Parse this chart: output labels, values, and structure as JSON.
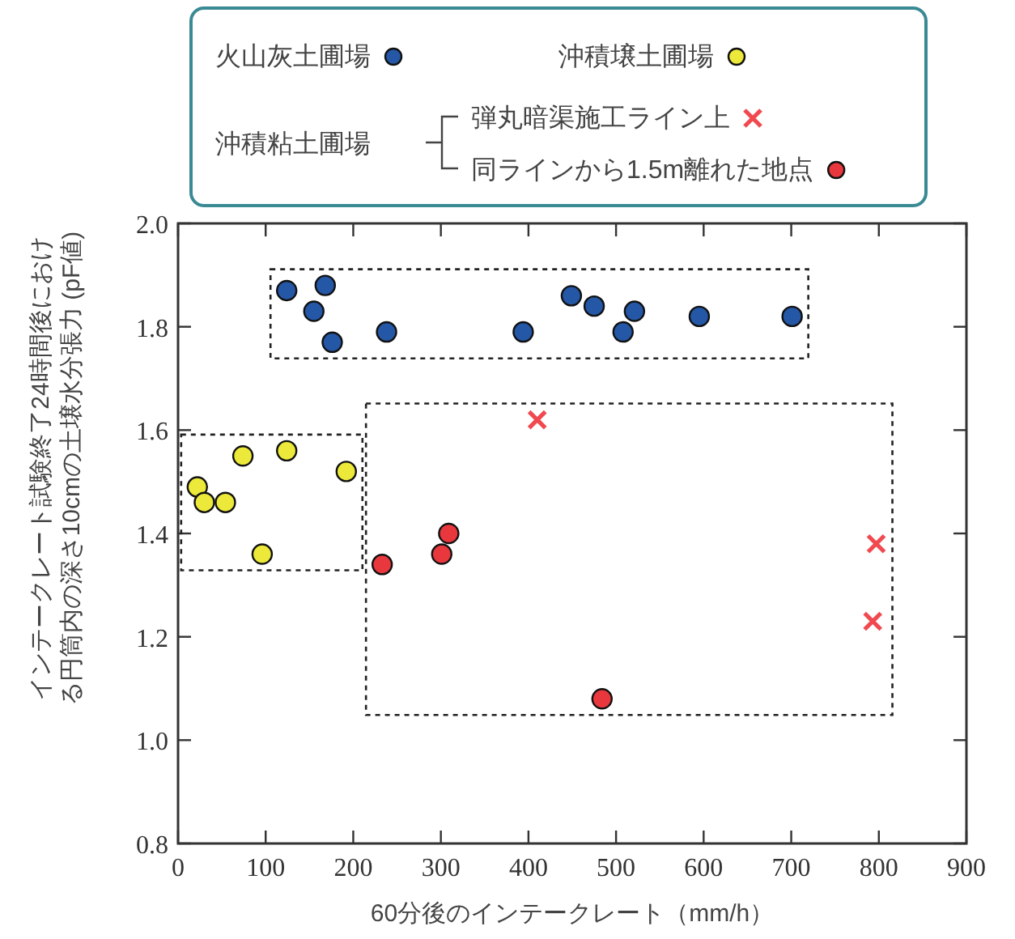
{
  "chart_data": {
    "type": "scatter",
    "xlabel": "60分後のインテークレート（mm/h）",
    "ylabel": "インテークレート試験終了24時間後における円筒内の深さ10cmの土壌水分張力 (pF値)",
    "xlim": [
      0,
      900
    ],
    "xticks": [
      0,
      100,
      200,
      300,
      400,
      500,
      600,
      700,
      800,
      900
    ],
    "ylim": [
      0.8,
      2.0
    ],
    "yticks": [
      {
        "value": 0.8,
        "label": "0.8"
      },
      {
        "value": 1.0,
        "label": "1.0"
      },
      {
        "value": 1.2,
        "label": "1.2"
      },
      {
        "value": 1.4,
        "label": "1.4"
      },
      {
        "value": 1.6,
        "label": "1.6"
      },
      {
        "value": 1.8,
        "label": "1.8"
      },
      {
        "value": 2.0,
        "label": "2.0"
      }
    ],
    "legend": "top",
    "grid": false,
    "annotations": [
      "沖積粘土圃場"
    ],
    "series": [
      {
        "name": "火山灰土圃場",
        "color": "#2457a6",
        "marker": "circle",
        "x": [
          124,
          168,
          155,
          176,
          238,
          394,
          449,
          475,
          521,
          508,
          595,
          701
        ],
        "values": [
          1.87,
          1.88,
          1.83,
          1.77,
          1.79,
          1.79,
          1.86,
          1.84,
          1.83,
          1.79,
          1.82,
          1.82
        ]
      },
      {
        "name": "沖積壌土圃場",
        "color": "#ece93a",
        "marker": "circle",
        "x": [
          22,
          30,
          54,
          74,
          124,
          192,
          96
        ],
        "values": [
          1.49,
          1.46,
          1.46,
          1.55,
          1.56,
          1.52,
          1.36
        ]
      },
      {
        "name": "弾丸暗渠施工ライン上",
        "color": "#f04a50",
        "marker": "cross",
        "x": [
          410,
          797,
          793
        ],
        "values": [
          1.62,
          1.38,
          1.23
        ]
      },
      {
        "name": "同ラインから1.5m離れた地点",
        "color": "#e8383d",
        "marker": "circle",
        "x": [
          233,
          301,
          309,
          484
        ],
        "values": [
          1.34,
          1.36,
          1.4,
          1.08
        ]
      }
    ]
  }
}
